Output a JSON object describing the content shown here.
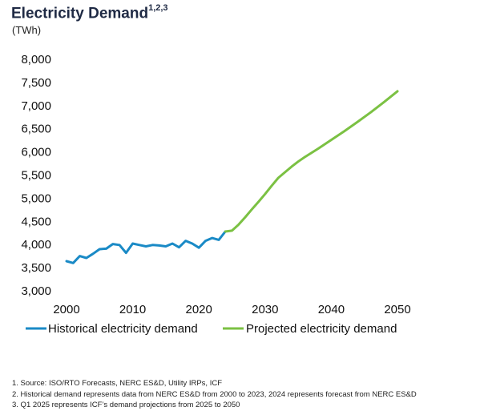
{
  "header": {
    "title": "Electricity Demand",
    "title_superscript": "1,2,3",
    "unit": "(TWh)"
  },
  "footnotes": [
    "1.  Source: ISO/RTO Forecasts, NERC ES&D, Utility IRPs, ICF",
    "2.  Historical demand represents data from NERC ES&D from 2000 to 2023, 2024 represents forecast from NERC ES&D",
    "3.  Q1 2025 represents ICF’s demand projections from 2025 to 2050"
  ],
  "chart_data": {
    "type": "line",
    "xlim": [
      2000,
      2050
    ],
    "ylim": [
      3000,
      8000
    ],
    "x_ticks": [
      "2000",
      "2010",
      "2020",
      "2030",
      "2040",
      "2050"
    ],
    "x_tick_values": [
      2000,
      2010,
      2020,
      2030,
      2040,
      2050
    ],
    "y_ticks": [
      "8,000",
      "7,500",
      "7,000",
      "6,500",
      "6,000",
      "5,500",
      "5,000",
      "4,500",
      "4,000",
      "3,500",
      "3,000"
    ],
    "y_tick_values": [
      8000,
      7500,
      7000,
      6500,
      6000,
      5500,
      5000,
      4500,
      4000,
      3500,
      3000
    ],
    "grid": false,
    "legend_position": "bottom",
    "series": [
      {
        "name": "Historical electricity demand",
        "color": "#1a8ac6",
        "x": [
          2000,
          2001,
          2002,
          2003,
          2004,
          2005,
          2006,
          2007,
          2008,
          2009,
          2010,
          2011,
          2012,
          2013,
          2014,
          2015,
          2016,
          2017,
          2018,
          2019,
          2020,
          2021,
          2022,
          2023,
          2024
        ],
        "y": [
          3640,
          3600,
          3750,
          3710,
          3800,
          3900,
          3910,
          4010,
          3990,
          3820,
          4020,
          3990,
          3960,
          3990,
          3980,
          3960,
          4020,
          3940,
          4080,
          4020,
          3930,
          4080,
          4140,
          4100,
          4280
        ]
      },
      {
        "name": "Projected electricity demand",
        "color": "#7bc143",
        "x": [
          2024,
          2025,
          2026,
          2027,
          2028,
          2029,
          2030,
          2031,
          2032,
          2033,
          2034,
          2035,
          2036,
          2038,
          2040,
          2042,
          2044,
          2046,
          2048,
          2050
        ],
        "y": [
          4280,
          4300,
          4430,
          4590,
          4760,
          4920,
          5090,
          5270,
          5440,
          5560,
          5680,
          5790,
          5890,
          6070,
          6260,
          6450,
          6650,
          6860,
          7080,
          7310
        ]
      }
    ]
  }
}
